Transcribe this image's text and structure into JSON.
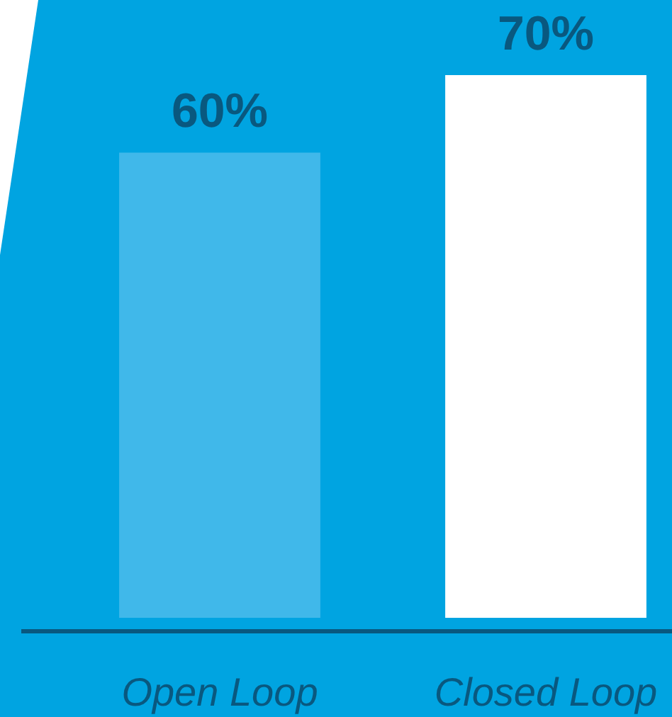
{
  "chart_data": {
    "type": "bar",
    "categories": [
      "Open Loop",
      "Closed Loop"
    ],
    "values": [
      60,
      70
    ],
    "colors": [
      "#40b8ea",
      "#ffffff"
    ],
    "value_labels": [
      "60%",
      "70%"
    ]
  }
}
